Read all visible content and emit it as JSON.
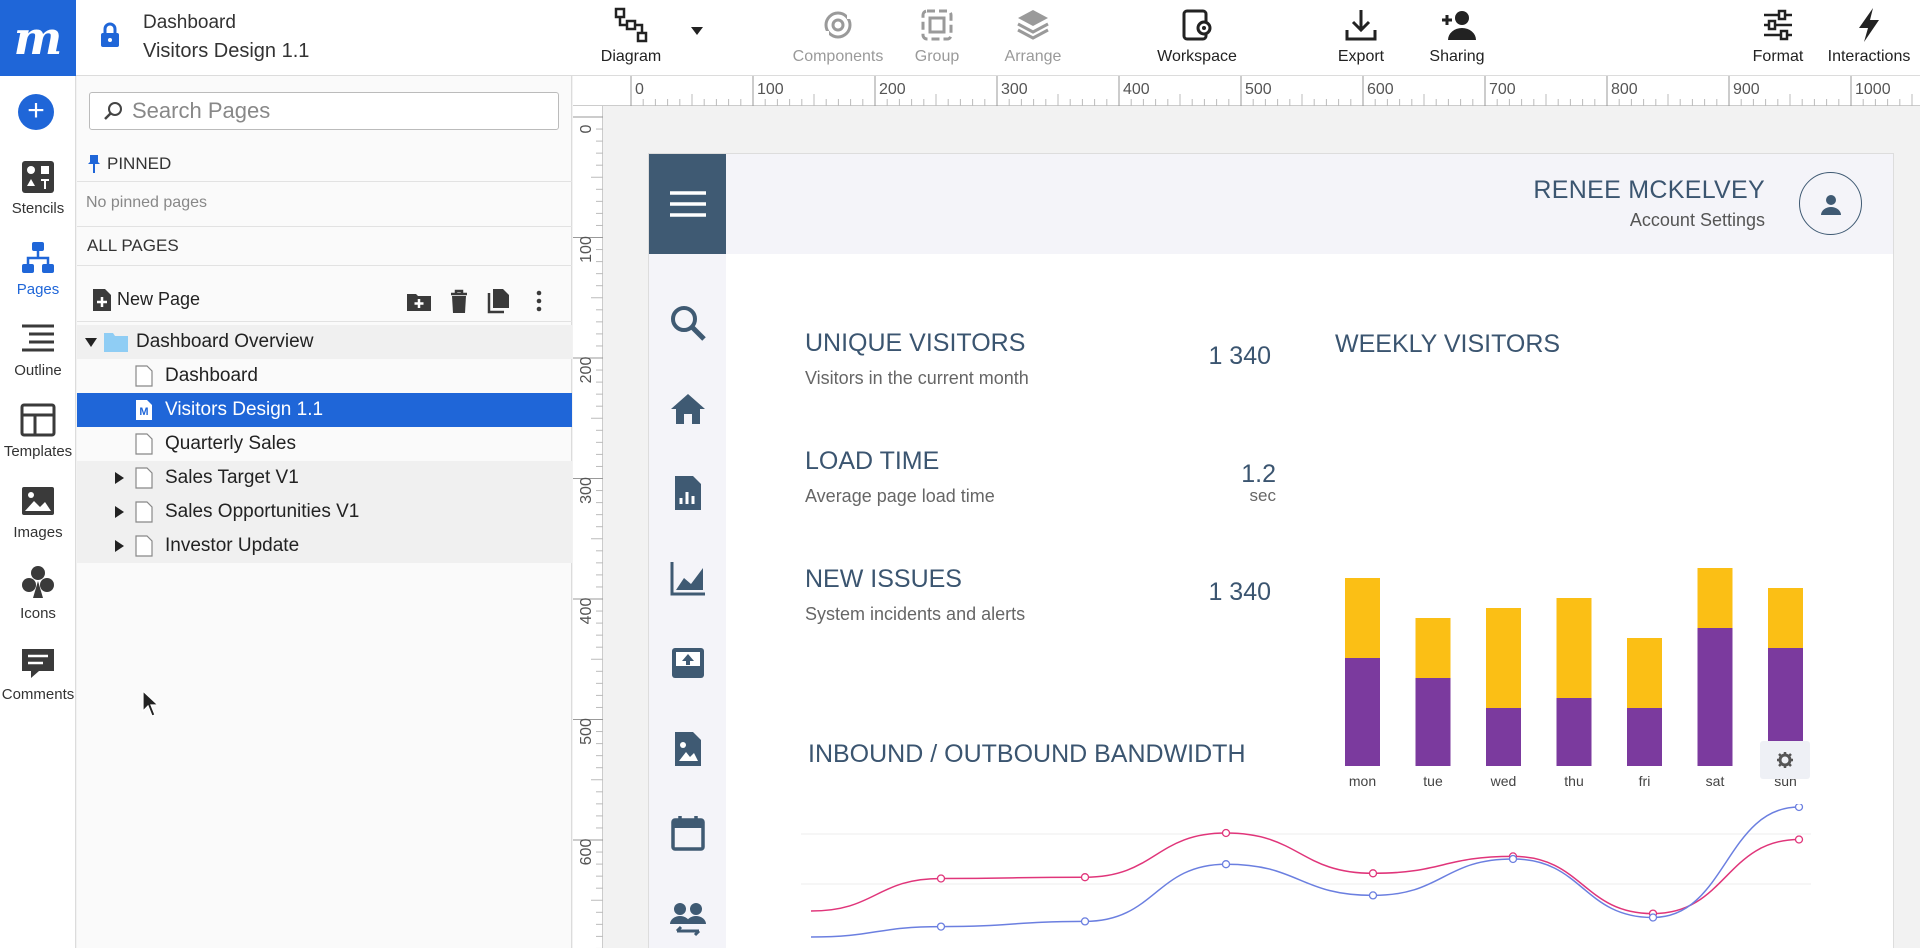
{
  "app": {
    "logo_letter": "m",
    "breadcrumb": "Dashboard",
    "document_title": "Visitors Design 1.1"
  },
  "toolbar": {
    "diagram": "Diagram",
    "components": "Components",
    "group": "Group",
    "arrange": "Arrange",
    "workspace": "Workspace",
    "export": "Export",
    "sharing": "Sharing",
    "format": "Format",
    "interactions": "Interactions"
  },
  "rail": {
    "add_symbol": "+",
    "stencils": "Stencils",
    "pages": "Pages",
    "outline": "Outline",
    "templates": "Templates",
    "images": "Images",
    "icons": "Icons",
    "comments": "Comments"
  },
  "pages_panel": {
    "search_placeholder": "Search Pages",
    "pinned_label": "PINNED",
    "no_pinned": "No pinned pages",
    "all_pages_label": "ALL PAGES",
    "new_page": "New Page",
    "tree": [
      {
        "label": "Dashboard Overview",
        "kind": "folder"
      },
      {
        "label": "Dashboard",
        "kind": "page"
      },
      {
        "label": "Visitors Design 1.1",
        "kind": "page",
        "badge": "M",
        "selected": true
      },
      {
        "label": "Quarterly Sales",
        "kind": "page"
      },
      {
        "label": "Sales Target V1",
        "kind": "page",
        "collapsed": true
      },
      {
        "label": "Sales Opportunities V1",
        "kind": "page",
        "collapsed": true
      },
      {
        "label": "Investor Update",
        "kind": "page",
        "collapsed": true
      }
    ]
  },
  "rulers": {
    "top": [
      "0",
      "100",
      "200",
      "300",
      "400",
      "500",
      "600",
      "700",
      "800",
      "900",
      "1000"
    ],
    "left": [
      "0",
      "100",
      "200",
      "300",
      "400",
      "500",
      "600"
    ]
  },
  "artboard": {
    "user_name": "RENEE MCKELVEY",
    "user_sub": "Account Settings",
    "kpis": [
      {
        "title": "UNIQUE VISITORS",
        "subtitle": "Visitors in the current month",
        "value": "1 340",
        "unit": ""
      },
      {
        "title": "LOAD TIME",
        "subtitle": "Average page load time",
        "value": "1.2",
        "unit": "sec"
      },
      {
        "title": "NEW ISSUES",
        "subtitle": "System incidents and alerts",
        "value": "1 340",
        "unit": ""
      }
    ],
    "weekly_title": "WEEKLY VISITORS",
    "bandwidth_title": "INBOUND / OUTBOUND BANDWIDTH"
  },
  "chart_data": [
    {
      "type": "bar",
      "title": "WEEKLY VISITORS",
      "stacked": true,
      "categories": [
        "mon",
        "tue",
        "wed",
        "thu",
        "fri",
        "sat",
        "sun"
      ],
      "series": [
        {
          "values": [
            108,
            88,
            58,
            68,
            58,
            138,
            118
          ]
        },
        {
          "values": [
            80,
            60,
            100,
            100,
            70,
            60,
            60
          ]
        }
      ],
      "colors": [
        "#7b3a9e",
        "#fbbf15"
      ],
      "grid": false
    },
    {
      "type": "line",
      "title": "INBOUND / OUTBOUND BANDWIDTH",
      "x": [
        0,
        1,
        2,
        3,
        4,
        5,
        6,
        7
      ],
      "series": [
        {
          "values": [
            20,
            45,
            46,
            80,
            49,
            62,
            18,
            75
          ],
          "color": "#e0357a"
        },
        {
          "values": [
            0,
            8,
            12,
            56,
            32,
            60,
            15,
            100
          ],
          "color": "#6b7fe0"
        }
      ],
      "grid": true
    }
  ],
  "colors": {
    "brand_blue": "#1f66d8",
    "nav_dark": "#3f5a73",
    "bar_bottom": "#7b3a9e",
    "bar_top": "#fbbf15"
  }
}
